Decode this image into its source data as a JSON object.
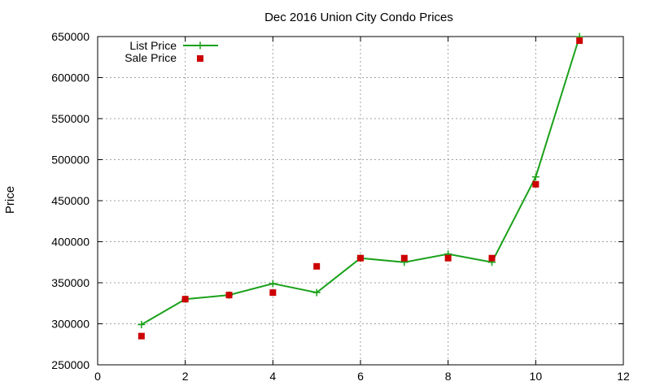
{
  "chart_data": {
    "type": "line",
    "title": "Dec 2016 Union City Condo Prices",
    "xlabel": "",
    "ylabel": "Price",
    "xlim": [
      0,
      12
    ],
    "ylim": [
      250000,
      650000
    ],
    "x_ticks": [
      "0",
      "2",
      "4",
      "6",
      "8",
      "10",
      "12"
    ],
    "y_ticks": [
      "250000",
      "300000",
      "350000",
      "400000",
      "450000",
      "500000",
      "550000",
      "600000",
      "650000"
    ],
    "grid": true,
    "legend_position": "top-left",
    "series": [
      {
        "name": "List Price",
        "style": "line+cross",
        "color": "#1aa11a",
        "x": [
          1,
          2,
          3,
          4,
          5,
          6,
          7,
          8,
          9,
          10,
          11
        ],
        "values": [
          299000,
          330000,
          335000,
          349000,
          338000,
          380000,
          375000,
          385000,
          375000,
          479000,
          650000
        ]
      },
      {
        "name": "Sale Price",
        "style": "square",
        "color": "#cc0000",
        "x": [
          1,
          2,
          3,
          4,
          5,
          6,
          7,
          8,
          9,
          10,
          11
        ],
        "values": [
          285000,
          330000,
          335000,
          338000,
          370000,
          380000,
          380000,
          380000,
          380000,
          470000,
          645000
        ]
      }
    ]
  }
}
